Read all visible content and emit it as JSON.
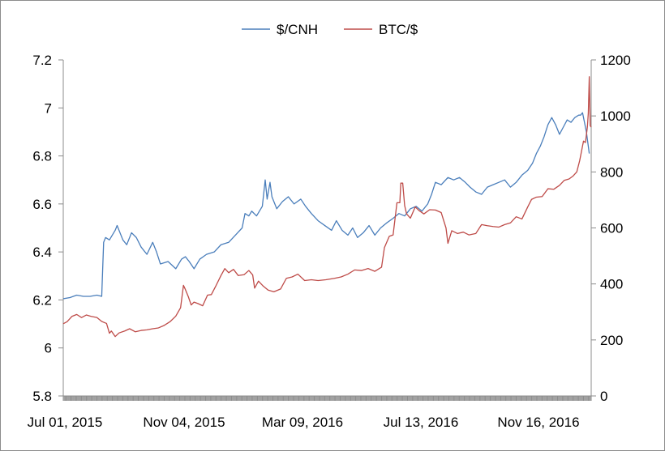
{
  "chart_data": {
    "type": "line",
    "title": "",
    "xlabel": "",
    "ylabel_left": "",
    "ylabel_right": "",
    "x_tick_labels": [
      "Jul 01, 2015",
      "Nov 04, 2015",
      "Mar 09, 2016",
      "Jul 13, 2016",
      "Nov 16, 2016"
    ],
    "x_range": [
      "2015-07-01",
      "2016-12-31"
    ],
    "y_left": {
      "min": 5.8,
      "max": 7.2,
      "ticks": [
        "5.8",
        "6",
        "6.2",
        "6.4",
        "6.6",
        "6.8",
        "7",
        "7.2"
      ]
    },
    "y_right": {
      "min": 0,
      "max": 1200,
      "ticks": [
        "0",
        "200",
        "400",
        "600",
        "800",
        "1000",
        "1200"
      ]
    },
    "grid": false,
    "legend_position": "top-center",
    "series": [
      {
        "name": "$/CNH",
        "axis": "left",
        "color": "#4a7ebb",
        "points": [
          [
            "2015-07-01",
            6.205
          ],
          [
            "2015-07-08",
            6.21
          ],
          [
            "2015-07-15",
            6.22
          ],
          [
            "2015-07-22",
            6.215
          ],
          [
            "2015-07-29",
            6.215
          ],
          [
            "2015-08-05",
            6.22
          ],
          [
            "2015-08-10",
            6.215
          ],
          [
            "2015-08-11",
            6.33
          ],
          [
            "2015-08-12",
            6.44
          ],
          [
            "2015-08-14",
            6.46
          ],
          [
            "2015-08-18",
            6.45
          ],
          [
            "2015-08-24",
            6.49
          ],
          [
            "2015-08-26",
            6.51
          ],
          [
            "2015-09-01",
            6.45
          ],
          [
            "2015-09-05",
            6.43
          ],
          [
            "2015-09-10",
            6.48
          ],
          [
            "2015-09-15",
            6.46
          ],
          [
            "2015-09-20",
            6.42
          ],
          [
            "2015-09-26",
            6.39
          ],
          [
            "2015-10-02",
            6.44
          ],
          [
            "2015-10-06",
            6.4
          ],
          [
            "2015-10-10",
            6.35
          ],
          [
            "2015-10-18",
            6.36
          ],
          [
            "2015-10-26",
            6.33
          ],
          [
            "2015-11-01",
            6.37
          ],
          [
            "2015-11-05",
            6.38
          ],
          [
            "2015-11-09",
            6.36
          ],
          [
            "2015-11-14",
            6.33
          ],
          [
            "2015-11-20",
            6.37
          ],
          [
            "2015-11-27",
            6.39
          ],
          [
            "2015-12-05",
            6.4
          ],
          [
            "2015-12-12",
            6.43
          ],
          [
            "2015-12-20",
            6.44
          ],
          [
            "2015-12-27",
            6.47
          ],
          [
            "2016-01-03",
            6.5
          ],
          [
            "2016-01-06",
            6.56
          ],
          [
            "2016-01-10",
            6.55
          ],
          [
            "2016-01-13",
            6.57
          ],
          [
            "2016-01-18",
            6.55
          ],
          [
            "2016-01-24",
            6.59
          ],
          [
            "2016-01-27",
            6.7
          ],
          [
            "2016-01-29",
            6.62
          ],
          [
            "2016-02-01",
            6.69
          ],
          [
            "2016-02-03",
            6.63
          ],
          [
            "2016-02-08",
            6.58
          ],
          [
            "2016-02-14",
            6.61
          ],
          [
            "2016-02-20",
            6.63
          ],
          [
            "2016-02-26",
            6.6
          ],
          [
            "2016-03-04",
            6.62
          ],
          [
            "2016-03-09",
            6.59
          ],
          [
            "2016-03-15",
            6.56
          ],
          [
            "2016-03-22",
            6.53
          ],
          [
            "2016-03-29",
            6.51
          ],
          [
            "2016-04-05",
            6.49
          ],
          [
            "2016-04-10",
            6.53
          ],
          [
            "2016-04-16",
            6.49
          ],
          [
            "2016-04-22",
            6.47
          ],
          [
            "2016-04-27",
            6.5
          ],
          [
            "2016-05-02",
            6.46
          ],
          [
            "2016-05-08",
            6.48
          ],
          [
            "2016-05-14",
            6.51
          ],
          [
            "2016-05-20",
            6.47
          ],
          [
            "2016-05-26",
            6.5
          ],
          [
            "2016-06-01",
            6.52
          ],
          [
            "2016-06-08",
            6.54
          ],
          [
            "2016-06-14",
            6.56
          ],
          [
            "2016-06-20",
            6.55
          ],
          [
            "2016-06-26",
            6.58
          ],
          [
            "2016-07-02",
            6.59
          ],
          [
            "2016-07-08",
            6.57
          ],
          [
            "2016-07-14",
            6.6
          ],
          [
            "2016-07-18",
            6.64
          ],
          [
            "2016-07-22",
            6.69
          ],
          [
            "2016-07-28",
            6.68
          ],
          [
            "2016-08-04",
            6.71
          ],
          [
            "2016-08-10",
            6.7
          ],
          [
            "2016-08-16",
            6.71
          ],
          [
            "2016-08-22",
            6.69
          ],
          [
            "2016-08-27",
            6.67
          ],
          [
            "2016-09-02",
            6.65
          ],
          [
            "2016-09-08",
            6.64
          ],
          [
            "2016-09-14",
            6.67
          ],
          [
            "2016-09-20",
            6.68
          ],
          [
            "2016-09-26",
            6.69
          ],
          [
            "2016-10-02",
            6.7
          ],
          [
            "2016-10-08",
            6.67
          ],
          [
            "2016-10-14",
            6.69
          ],
          [
            "2016-10-20",
            6.72
          ],
          [
            "2016-10-26",
            6.74
          ],
          [
            "2016-10-31",
            6.77
          ],
          [
            "2016-11-04",
            6.81
          ],
          [
            "2016-11-08",
            6.84
          ],
          [
            "2016-11-12",
            6.88
          ],
          [
            "2016-11-16",
            6.93
          ],
          [
            "2016-11-20",
            6.96
          ],
          [
            "2016-11-24",
            6.93
          ],
          [
            "2016-11-28",
            6.89
          ],
          [
            "2016-12-02",
            6.92
          ],
          [
            "2016-12-06",
            6.95
          ],
          [
            "2016-12-10",
            6.94
          ],
          [
            "2016-12-14",
            6.96
          ],
          [
            "2016-12-18",
            6.97
          ],
          [
            "2016-12-20",
            6.97
          ],
          [
            "2016-12-22",
            6.98
          ],
          [
            "2016-12-26",
            6.9
          ],
          [
            "2016-12-29",
            6.81
          ]
        ]
      },
      {
        "name": "BTC/$",
        "axis": "right",
        "color": "#be4b48",
        "points": [
          [
            "2015-07-01",
            258
          ],
          [
            "2015-07-05",
            265
          ],
          [
            "2015-07-10",
            284
          ],
          [
            "2015-07-15",
            291
          ],
          [
            "2015-07-20",
            280
          ],
          [
            "2015-07-25",
            289
          ],
          [
            "2015-07-30",
            284
          ],
          [
            "2015-08-05",
            280
          ],
          [
            "2015-08-10",
            266
          ],
          [
            "2015-08-15",
            259
          ],
          [
            "2015-08-18",
            224
          ],
          [
            "2015-08-20",
            232
          ],
          [
            "2015-08-24",
            212
          ],
          [
            "2015-08-28",
            225
          ],
          [
            "2015-09-03",
            232
          ],
          [
            "2015-09-08",
            240
          ],
          [
            "2015-09-14",
            229
          ],
          [
            "2015-09-20",
            234
          ],
          [
            "2015-09-26",
            236
          ],
          [
            "2015-10-02",
            240
          ],
          [
            "2015-10-08",
            243
          ],
          [
            "2015-10-14",
            252
          ],
          [
            "2015-10-20",
            265
          ],
          [
            "2015-10-26",
            285
          ],
          [
            "2015-10-31",
            315
          ],
          [
            "2015-11-03",
            395
          ],
          [
            "2015-11-05",
            380
          ],
          [
            "2015-11-08",
            355
          ],
          [
            "2015-11-11",
            325
          ],
          [
            "2015-11-14",
            335
          ],
          [
            "2015-11-18",
            330
          ],
          [
            "2015-11-23",
            322
          ],
          [
            "2015-11-28",
            360
          ],
          [
            "2015-12-02",
            362
          ],
          [
            "2015-12-07",
            395
          ],
          [
            "2015-12-12",
            430
          ],
          [
            "2015-12-16",
            455
          ],
          [
            "2015-12-20",
            440
          ],
          [
            "2015-12-25",
            452
          ],
          [
            "2015-12-30",
            430
          ],
          [
            "2016-01-05",
            433
          ],
          [
            "2016-01-10",
            448
          ],
          [
            "2016-01-14",
            432
          ],
          [
            "2016-01-16",
            385
          ],
          [
            "2016-01-20",
            410
          ],
          [
            "2016-01-25",
            392
          ],
          [
            "2016-01-30",
            378
          ],
          [
            "2016-02-05",
            372
          ],
          [
            "2016-02-12",
            382
          ],
          [
            "2016-02-18",
            420
          ],
          [
            "2016-02-24",
            425
          ],
          [
            "2016-03-01",
            435
          ],
          [
            "2016-03-08",
            412
          ],
          [
            "2016-03-15",
            415
          ],
          [
            "2016-03-22",
            412
          ],
          [
            "2016-03-30",
            415
          ],
          [
            "2016-04-08",
            420
          ],
          [
            "2016-04-15",
            425
          ],
          [
            "2016-04-22",
            435
          ],
          [
            "2016-04-29",
            450
          ],
          [
            "2016-05-06",
            448
          ],
          [
            "2016-05-13",
            455
          ],
          [
            "2016-05-20",
            445
          ],
          [
            "2016-05-27",
            460
          ],
          [
            "2016-05-30",
            530
          ],
          [
            "2016-06-04",
            570
          ],
          [
            "2016-06-08",
            575
          ],
          [
            "2016-06-12",
            690
          ],
          [
            "2016-06-15",
            690
          ],
          [
            "2016-06-16",
            760
          ],
          [
            "2016-06-18",
            760
          ],
          [
            "2016-06-20",
            680
          ],
          [
            "2016-06-22",
            650
          ],
          [
            "2016-06-26",
            635
          ],
          [
            "2016-07-01",
            675
          ],
          [
            "2016-07-05",
            662
          ],
          [
            "2016-07-10",
            650
          ],
          [
            "2016-07-16",
            665
          ],
          [
            "2016-07-22",
            664
          ],
          [
            "2016-07-28",
            655
          ],
          [
            "2016-08-02",
            600
          ],
          [
            "2016-08-04",
            545
          ],
          [
            "2016-08-08",
            590
          ],
          [
            "2016-08-14",
            580
          ],
          [
            "2016-08-20",
            585
          ],
          [
            "2016-08-26",
            575
          ],
          [
            "2016-09-02",
            580
          ],
          [
            "2016-09-08",
            612
          ],
          [
            "2016-09-14",
            608
          ],
          [
            "2016-09-20",
            605
          ],
          [
            "2016-09-26",
            603
          ],
          [
            "2016-10-02",
            612
          ],
          [
            "2016-10-08",
            618
          ],
          [
            "2016-10-14",
            640
          ],
          [
            "2016-10-20",
            632
          ],
          [
            "2016-10-26",
            675
          ],
          [
            "2016-10-30",
            702
          ],
          [
            "2016-11-04",
            710
          ],
          [
            "2016-11-10",
            712
          ],
          [
            "2016-11-16",
            740
          ],
          [
            "2016-11-22",
            738
          ],
          [
            "2016-11-28",
            752
          ],
          [
            "2016-12-03",
            770
          ],
          [
            "2016-12-08",
            775
          ],
          [
            "2016-12-12",
            785
          ],
          [
            "2016-12-16",
            800
          ],
          [
            "2016-12-19",
            840
          ],
          [
            "2016-12-21",
            875
          ],
          [
            "2016-12-23",
            910
          ],
          [
            "2016-12-25",
            905
          ],
          [
            "2016-12-27",
            960
          ],
          [
            "2016-12-28",
            1010
          ],
          [
            "2016-12-29",
            1140
          ],
          [
            "2016-12-30",
            965
          ],
          [
            "2016-12-31",
            960
          ]
        ]
      }
    ]
  }
}
